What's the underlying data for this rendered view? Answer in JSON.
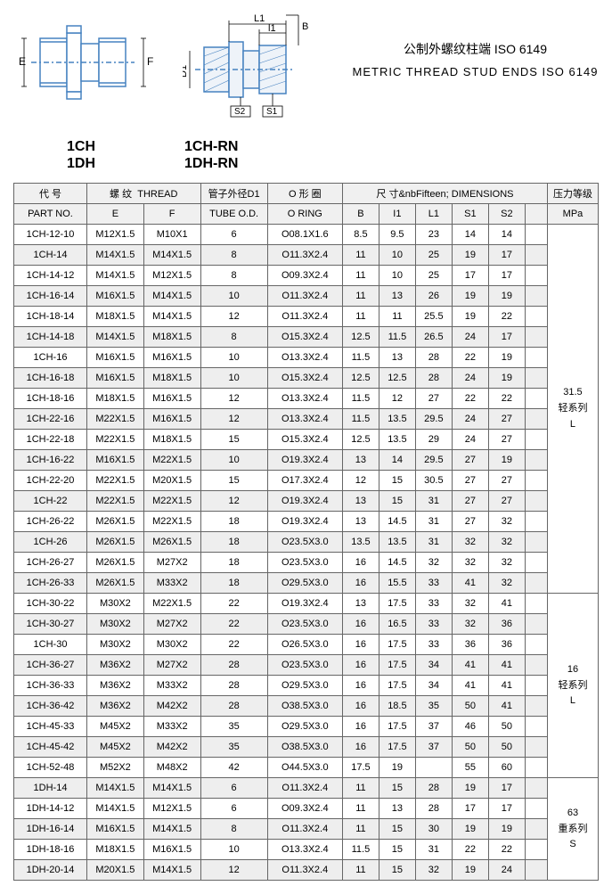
{
  "title_cn": "公制外螺纹柱端 ISO 6149",
  "title_en": "METRIC THREAD STUD ENDS ISO 6149",
  "labels_left_1": "1CH",
  "labels_left_2": "1DH",
  "labels_right_1": "1CH-RN",
  "labels_right_2": "1DH-RN",
  "dim_labels": {
    "E": "E",
    "F": "F",
    "D1": "D1",
    "L1": "L1",
    "l1": "l1",
    "B": "B",
    "S1": "S1",
    "S2": "S2"
  },
  "header": {
    "part_no_cn": "代 号",
    "part_no_en": "PART NO.",
    "thread_cn": "螺 纹",
    "thread_en": "THREAD",
    "tube_cn": "管子外径D1",
    "tube_en": "TUBE O.D.",
    "oring_cn": "O 形 圈",
    "oring_en": "O RING",
    "dim_cn": "尺 寸",
    "dim_en": "DIMENSIONS",
    "mpa_cn": "压力等级",
    "mpa_en": "MPa",
    "E": "E",
    "F": "F",
    "B": "B",
    "I1": "I1",
    "L1": "L1",
    "S1": "S1",
    "S2": "S2"
  },
  "pressure_groups": [
    {
      "lines": [
        "31.5",
        "轻系列",
        "L"
      ],
      "rows": 18
    },
    {
      "lines": [
        "16",
        "轻系列",
        "L"
      ],
      "rows": 9
    },
    {
      "lines": [
        "63",
        "重系列",
        "S"
      ],
      "rows": 5
    }
  ],
  "rows": [
    [
      "1CH-12-10",
      "M12X1.5",
      "M10X1",
      "6",
      "O08.1X1.6",
      "8.5",
      "9.5",
      "23",
      "14",
      "14"
    ],
    [
      "1CH-14",
      "M14X1.5",
      "M14X1.5",
      "8",
      "O11.3X2.4",
      "11",
      "10",
      "25",
      "19",
      "17"
    ],
    [
      "1CH-14-12",
      "M14X1.5",
      "M12X1.5",
      "8",
      "O09.3X2.4",
      "11",
      "10",
      "25",
      "17",
      "17"
    ],
    [
      "1CH-16-14",
      "M16X1.5",
      "M14X1.5",
      "10",
      "O11.3X2.4",
      "11",
      "13",
      "26",
      "19",
      "19"
    ],
    [
      "1CH-18-14",
      "M18X1.5",
      "M14X1.5",
      "12",
      "O11.3X2.4",
      "11",
      "11",
      "25.5",
      "19",
      "22"
    ],
    [
      "1CH-14-18",
      "M14X1.5",
      "M18X1.5",
      "8",
      "O15.3X2.4",
      "12.5",
      "11.5",
      "26.5",
      "24",
      "17"
    ],
    [
      "1CH-16",
      "M16X1.5",
      "M16X1.5",
      "10",
      "O13.3X2.4",
      "11.5",
      "13",
      "28",
      "22",
      "19"
    ],
    [
      "1CH-16-18",
      "M16X1.5",
      "M18X1.5",
      "10",
      "O15.3X2.4",
      "12.5",
      "12.5",
      "28",
      "24",
      "19"
    ],
    [
      "1CH-18-16",
      "M18X1.5",
      "M16X1.5",
      "12",
      "O13.3X2.4",
      "11.5",
      "12",
      "27",
      "22",
      "22"
    ],
    [
      "1CH-22-16",
      "M22X1.5",
      "M16X1.5",
      "12",
      "O13.3X2.4",
      "11.5",
      "13.5",
      "29.5",
      "24",
      "27"
    ],
    [
      "1CH-22-18",
      "M22X1.5",
      "M18X1.5",
      "15",
      "O15.3X2.4",
      "12.5",
      "13.5",
      "29",
      "24",
      "27"
    ],
    [
      "1CH-16-22",
      "M16X1.5",
      "M22X1.5",
      "10",
      "O19.3X2.4",
      "13",
      "14",
      "29.5",
      "27",
      "19"
    ],
    [
      "1CH-22-20",
      "M22X1.5",
      "M20X1.5",
      "15",
      "O17.3X2.4",
      "12",
      "15",
      "30.5",
      "27",
      "27"
    ],
    [
      "1CH-22",
      "M22X1.5",
      "M22X1.5",
      "12",
      "O19.3X2.4",
      "13",
      "15",
      "31",
      "27",
      "27"
    ],
    [
      "1CH-26-22",
      "M26X1.5",
      "M22X1.5",
      "18",
      "O19.3X2.4",
      "13",
      "14.5",
      "31",
      "27",
      "32"
    ],
    [
      "1CH-26",
      "M26X1.5",
      "M26X1.5",
      "18",
      "O23.5X3.0",
      "13.5",
      "13.5",
      "31",
      "32",
      "32"
    ],
    [
      "1CH-26-27",
      "M26X1.5",
      "M27X2",
      "18",
      "O23.5X3.0",
      "16",
      "14.5",
      "32",
      "32",
      "32"
    ],
    [
      "1CH-26-33",
      "M26X1.5",
      "M33X2",
      "18",
      "O29.5X3.0",
      "16",
      "15.5",
      "33",
      "41",
      "32"
    ],
    [
      "1CH-30-22",
      "M30X2",
      "M22X1.5",
      "22",
      "O19.3X2.4",
      "13",
      "17.5",
      "33",
      "32",
      "41"
    ],
    [
      "1CH-30-27",
      "M30X2",
      "M27X2",
      "22",
      "O23.5X3.0",
      "16",
      "16.5",
      "33",
      "32",
      "36"
    ],
    [
      "1CH-30",
      "M30X2",
      "M30X2",
      "22",
      "O26.5X3.0",
      "16",
      "17.5",
      "33",
      "36",
      "36"
    ],
    [
      "1CH-36-27",
      "M36X2",
      "M27X2",
      "28",
      "O23.5X3.0",
      "16",
      "17.5",
      "34",
      "41",
      "41"
    ],
    [
      "1CH-36-33",
      "M36X2",
      "M33X2",
      "28",
      "O29.5X3.0",
      "16",
      "17.5",
      "34",
      "41",
      "41"
    ],
    [
      "1CH-36-42",
      "M36X2",
      "M42X2",
      "28",
      "O38.5X3.0",
      "16",
      "18.5",
      "35",
      "50",
      "41"
    ],
    [
      "1CH-45-33",
      "M45X2",
      "M33X2",
      "35",
      "O29.5X3.0",
      "16",
      "17.5",
      "37",
      "46",
      "50"
    ],
    [
      "1CH-45-42",
      "M45X2",
      "M42X2",
      "35",
      "O38.5X3.0",
      "16",
      "17.5",
      "37",
      "50",
      "50"
    ],
    [
      "1CH-52-48",
      "M52X2",
      "M48X2",
      "42",
      "O44.5X3.0",
      "17.5",
      "19",
      "",
      "55",
      "60"
    ],
    [
      "1DH-14",
      "M14X1.5",
      "M14X1.5",
      "6",
      "O11.3X2.4",
      "11",
      "15",
      "28",
      "19",
      "17"
    ],
    [
      "1DH-14-12",
      "M14X1.5",
      "M12X1.5",
      "6",
      "O09.3X2.4",
      "11",
      "13",
      "28",
      "17",
      "17"
    ],
    [
      "1DH-16-14",
      "M16X1.5",
      "M14X1.5",
      "8",
      "O11.3X2.4",
      "11",
      "15",
      "30",
      "19",
      "19"
    ],
    [
      "1DH-18-16",
      "M18X1.5",
      "M16X1.5",
      "10",
      "O13.3X2.4",
      "11.5",
      "15",
      "31",
      "22",
      "22"
    ],
    [
      "1DH-20-14",
      "M20X1.5",
      "M14X1.5",
      "12",
      "O11.3X2.4",
      "11",
      "15",
      "32",
      "19",
      "24"
    ]
  ]
}
